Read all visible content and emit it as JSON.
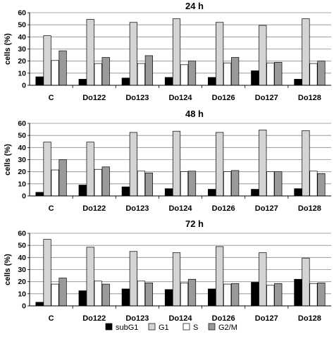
{
  "colors": {
    "subG1": "#000000",
    "G1": "#d4d4d4",
    "S": "#ffffff",
    "G2M": "#9a9a9a",
    "grid": "#8c8c8c"
  },
  "legend": [
    {
      "key": "subG1",
      "label": "subG1"
    },
    {
      "key": "G1",
      "label": "G1"
    },
    {
      "key": "S",
      "label": "S"
    },
    {
      "key": "G2M",
      "label": "G2/M"
    }
  ],
  "chart_data": [
    {
      "type": "bar",
      "title": "24 h",
      "ylabel": "cells (%)",
      "ylim": [
        0,
        60
      ],
      "yticks": [
        0,
        10,
        20,
        30,
        40,
        50,
        60
      ],
      "grid": true,
      "categories": [
        "C",
        "Do122",
        "Do123",
        "Do124",
        "Do126",
        "Do127",
        "Do128"
      ],
      "series": [
        {
          "name": "subG1",
          "values": [
            7,
            5,
            6,
            6.5,
            6.5,
            12,
            5
          ]
        },
        {
          "name": "G1",
          "values": [
            41,
            54.5,
            52,
            55,
            52,
            49.5,
            55
          ]
        },
        {
          "name": "S",
          "values": [
            20.5,
            18,
            18,
            17,
            18.5,
            18.5,
            18
          ]
        },
        {
          "name": "G2/M",
          "values": [
            28.5,
            23,
            24.5,
            20,
            23,
            19,
            20
          ]
        }
      ]
    },
    {
      "type": "bar",
      "title": "48 h",
      "ylabel": "cells (%)",
      "ylim": [
        0,
        60
      ],
      "yticks": [
        0,
        10,
        20,
        30,
        40,
        50,
        60
      ],
      "grid": true,
      "categories": [
        "C",
        "Do122",
        "Do123",
        "Do124",
        "Do126",
        "Do127",
        "Do128"
      ],
      "series": [
        {
          "name": "subG1",
          "values": [
            3,
            9,
            7.5,
            6,
            5.5,
            5.5,
            6
          ]
        },
        {
          "name": "G1",
          "values": [
            44.5,
            44.5,
            52.5,
            53.5,
            52.5,
            54.5,
            54
          ]
        },
        {
          "name": "S",
          "values": [
            21.5,
            22,
            20.5,
            20,
            20,
            20,
            20.5
          ]
        },
        {
          "name": "G2/M",
          "values": [
            30,
            24,
            19,
            20.5,
            21,
            20,
            18.5
          ]
        }
      ]
    },
    {
      "type": "bar",
      "title": "72 h",
      "ylabel": "cells (%)",
      "ylim": [
        0,
        60
      ],
      "yticks": [
        0,
        10,
        20,
        30,
        40,
        50,
        60
      ],
      "grid": true,
      "categories": [
        "C",
        "Do122",
        "Do123",
        "Do124",
        "Do126",
        "Do127",
        "Do128"
      ],
      "series": [
        {
          "name": "subG1",
          "values": [
            3,
            12.5,
            14,
            13.5,
            14,
            19.5,
            22
          ]
        },
        {
          "name": "G1",
          "values": [
            55,
            48.5,
            45,
            44,
            49,
            44,
            39.5
          ]
        },
        {
          "name": "S",
          "values": [
            18,
            20.5,
            20.5,
            19,
            18,
            17,
            18.5
          ]
        },
        {
          "name": "G2/M",
          "values": [
            23,
            18,
            19,
            22,
            18.5,
            18.5,
            19
          ]
        }
      ]
    }
  ]
}
